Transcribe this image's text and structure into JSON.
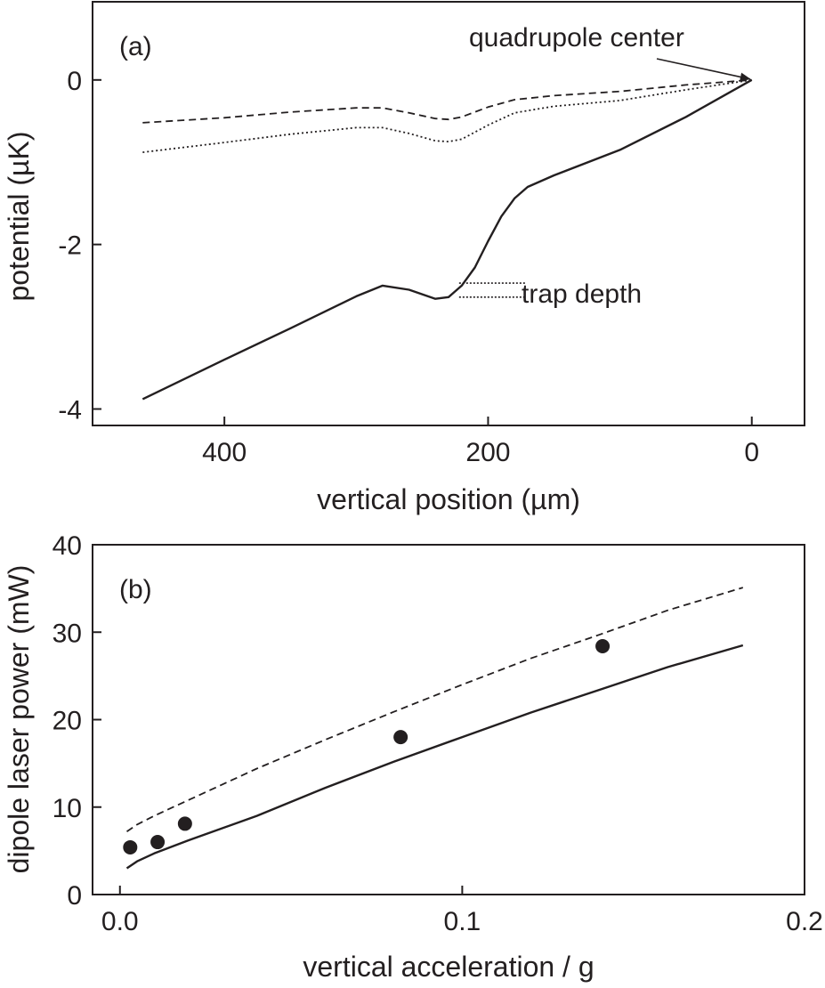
{
  "chart_data": [
    {
      "type": "line",
      "panel_label": "(a)",
      "xlabel": "vertical position (µm)",
      "ylabel": "potential (µK)",
      "xlim": [
        500,
        -40
      ],
      "ylim": [
        -4.2,
        0.95
      ],
      "x_reversed": true,
      "xticks": [
        400,
        200,
        0
      ],
      "xtick_labels": [
        "400",
        "200",
        "0"
      ],
      "yticks": [
        0,
        -2,
        -4
      ],
      "ytick_labels": [
        "0",
        "-2",
        "-4"
      ],
      "grid": false,
      "series": [
        {
          "style": "solid",
          "x": [
            462,
            400,
            350,
            300,
            280,
            260,
            240,
            230,
            220,
            210,
            200,
            190,
            180,
            170,
            160,
            150,
            100,
            50,
            0
          ],
          "y": [
            -3.88,
            -3.4,
            -3.02,
            -2.63,
            -2.5,
            -2.55,
            -2.66,
            -2.64,
            -2.5,
            -2.28,
            -1.96,
            -1.66,
            -1.44,
            -1.3,
            -1.23,
            -1.16,
            -0.85,
            -0.45,
            0.0
          ]
        },
        {
          "style": "dashed",
          "x": [
            462,
            400,
            350,
            300,
            280,
            260,
            240,
            230,
            220,
            200,
            180,
            150,
            100,
            50,
            0
          ],
          "y": [
            -0.52,
            -0.46,
            -0.39,
            -0.34,
            -0.34,
            -0.4,
            -0.47,
            -0.48,
            -0.45,
            -0.33,
            -0.24,
            -0.19,
            -0.14,
            -0.06,
            0.0
          ]
        },
        {
          "style": "dotted",
          "x": [
            462,
            400,
            350,
            300,
            280,
            260,
            240,
            230,
            220,
            200,
            180,
            150,
            100,
            50,
            0
          ],
          "y": [
            -0.88,
            -0.76,
            -0.66,
            -0.58,
            -0.58,
            -0.65,
            -0.74,
            -0.75,
            -0.72,
            -0.55,
            -0.4,
            -0.32,
            -0.25,
            -0.12,
            0.0
          ]
        }
      ],
      "annotations": [
        {
          "text": "quadrupole center",
          "target": [
            0,
            0
          ],
          "kind": "arrow"
        },
        {
          "text": "trap depth",
          "marker_x": [
            222,
            172
          ],
          "marker_y": [
            -2.47,
            -2.64
          ],
          "kind": "dotted-bracket"
        }
      ]
    },
    {
      "type": "scatter",
      "panel_label": "(b)",
      "xlabel": "vertical acceleration / g",
      "ylabel": "dipole laser power (mW)",
      "xlim": [
        -0.008,
        0.2
      ],
      "ylim": [
        0,
        40
      ],
      "xticks": [
        0.0,
        0.1,
        0.2
      ],
      "xtick_labels": [
        "0.0",
        "0.1",
        "0.2"
      ],
      "yticks": [
        0,
        10,
        20,
        30,
        40
      ],
      "ytick_labels": [
        "0",
        "10",
        "20",
        "30",
        "40"
      ],
      "grid": false,
      "points": {
        "x": [
          0.003,
          0.011,
          0.019,
          0.082,
          0.141
        ],
        "y": [
          5.4,
          6.0,
          8.1,
          18.0,
          28.4
        ]
      },
      "series": [
        {
          "style": "solid",
          "x": [
            0.002,
            0.005,
            0.01,
            0.02,
            0.04,
            0.06,
            0.08,
            0.1,
            0.12,
            0.14,
            0.16,
            0.182
          ],
          "y": [
            3.0,
            3.8,
            4.7,
            6.2,
            9.0,
            12.2,
            15.2,
            18.0,
            20.8,
            23.4,
            26.0,
            28.5
          ]
        },
        {
          "style": "dashed",
          "x": [
            0.002,
            0.005,
            0.01,
            0.02,
            0.04,
            0.06,
            0.08,
            0.1,
            0.12,
            0.14,
            0.16,
            0.182
          ],
          "y": [
            7.2,
            8.0,
            9.0,
            10.8,
            14.4,
            17.7,
            20.9,
            24.0,
            27.0,
            29.7,
            32.5,
            35.1
          ]
        }
      ]
    }
  ]
}
